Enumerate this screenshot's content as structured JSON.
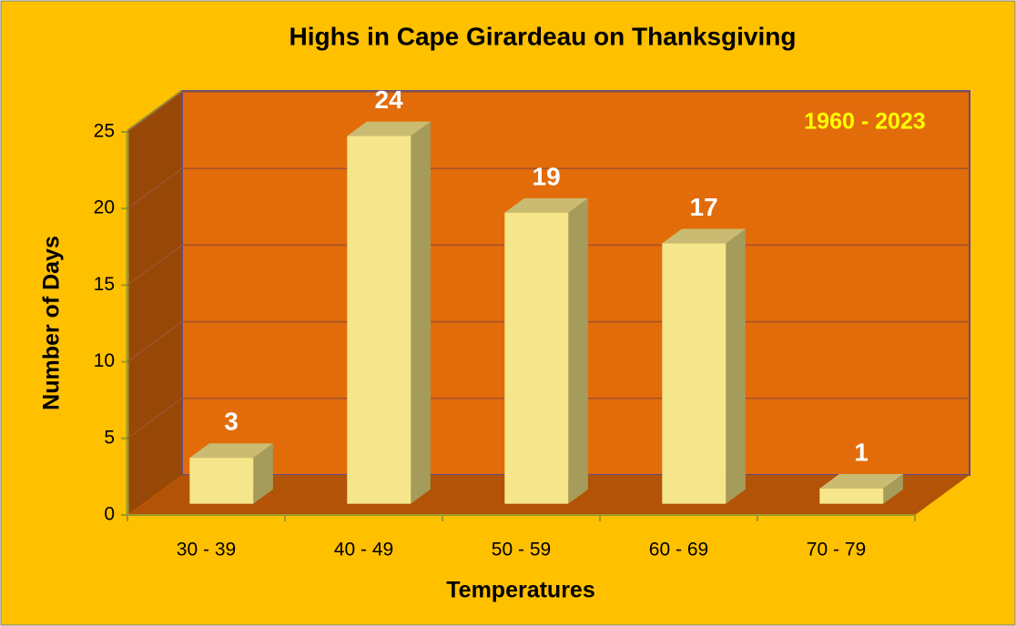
{
  "chart_data": {
    "type": "bar3d",
    "title": "Highs in Cape Girardeau on Thanksgiving",
    "annotation": "1960 - 2023",
    "x_label": "Temperatures",
    "y_label": "Number of Days",
    "categories": [
      "30 - 39",
      "40 - 49",
      "50 - 59",
      "60 - 69",
      "70 - 79"
    ],
    "values": [
      3,
      24,
      19,
      17,
      1
    ],
    "color": "#F5E68B",
    "ylim": [
      0,
      25
    ],
    "yticks": [
      0,
      5,
      10,
      15,
      20,
      25
    ],
    "grid": true
  }
}
